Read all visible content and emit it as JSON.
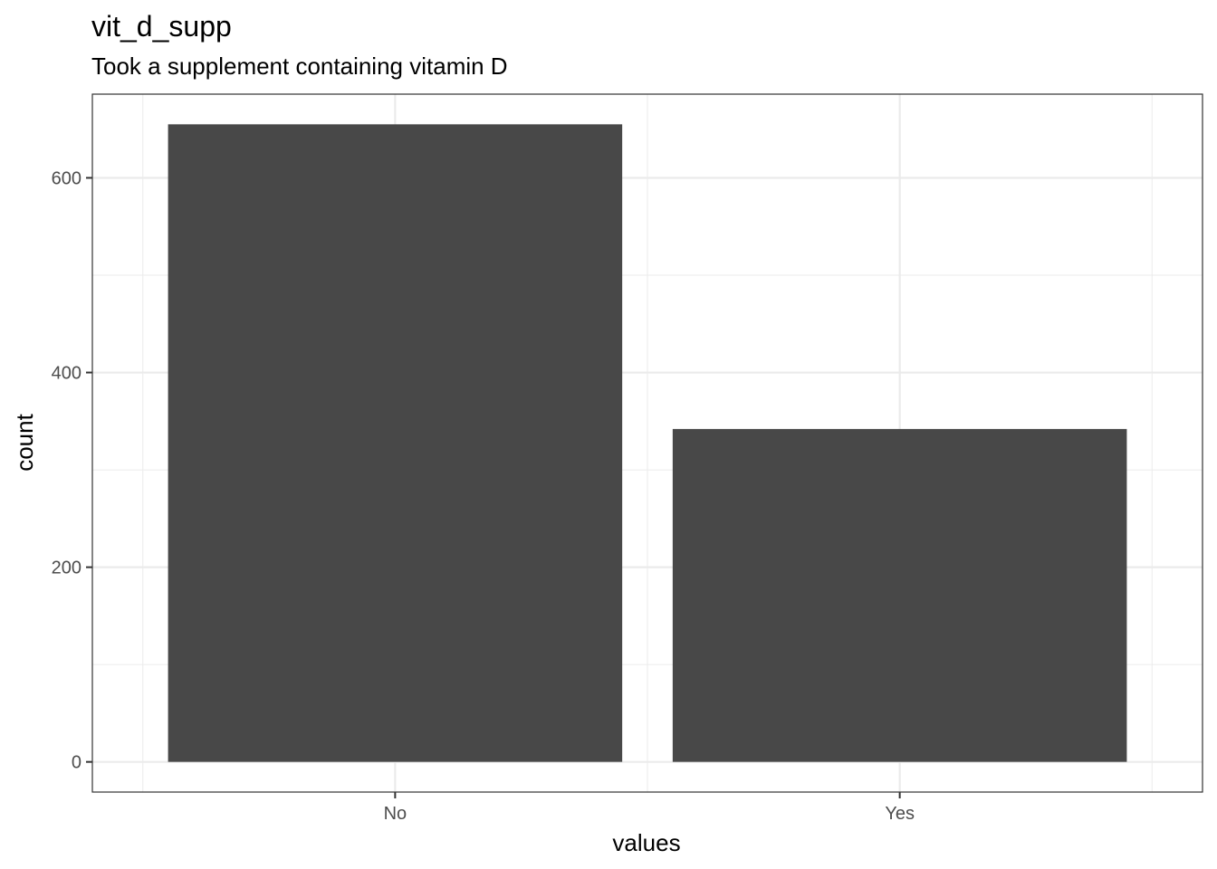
{
  "chart_data": {
    "type": "bar",
    "title": "vit_d_supp",
    "subtitle": "Took a supplement containing vitamin D",
    "xlabel": "values",
    "ylabel": "count",
    "categories": [
      "No",
      "Yes"
    ],
    "values": [
      655,
      342
    ],
    "ylim": [
      -31,
      686
    ],
    "yticks": [
      0,
      200,
      400,
      600
    ],
    "grid": true,
    "bar_color": "#484848",
    "grid_color": "#ebebeb",
    "panel_border_color": "#333333"
  }
}
